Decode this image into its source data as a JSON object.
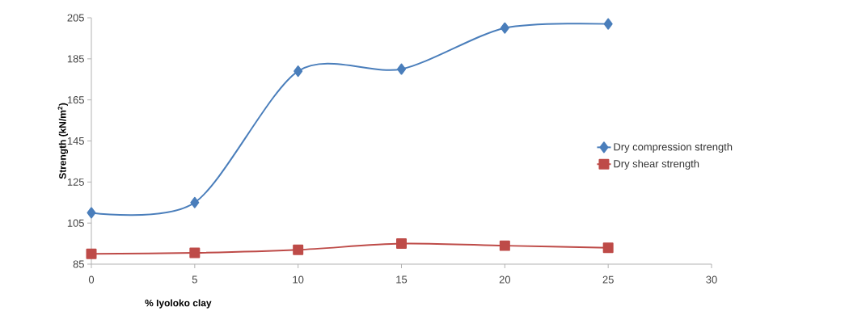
{
  "chart_data": {
    "type": "line",
    "xlabel": "% Iyoloko clay",
    "ylabel": "Strength (kN/m$^{2}$)",
    "x": [
      0,
      5,
      10,
      15,
      20,
      25
    ],
    "series": [
      {
        "name": "Dry compression strength",
        "color": "#4a7ebb",
        "marker": "diamond",
        "values": [
          110,
          115,
          179,
          180,
          200,
          202
        ]
      },
      {
        "name": "Dry shear strength",
        "color": "#be4b48",
        "marker": "square",
        "values": [
          90,
          90.5,
          92,
          95,
          94,
          93
        ]
      }
    ],
    "xlim": [
      0,
      30
    ],
    "xticks": [
      0,
      5,
      10,
      15,
      20,
      25,
      30
    ],
    "ylim": [
      85,
      205
    ],
    "yticks": [
      85,
      105,
      125,
      145,
      165,
      185,
      205
    ],
    "grid": false,
    "legend": "right",
    "line_style": "solid"
  }
}
